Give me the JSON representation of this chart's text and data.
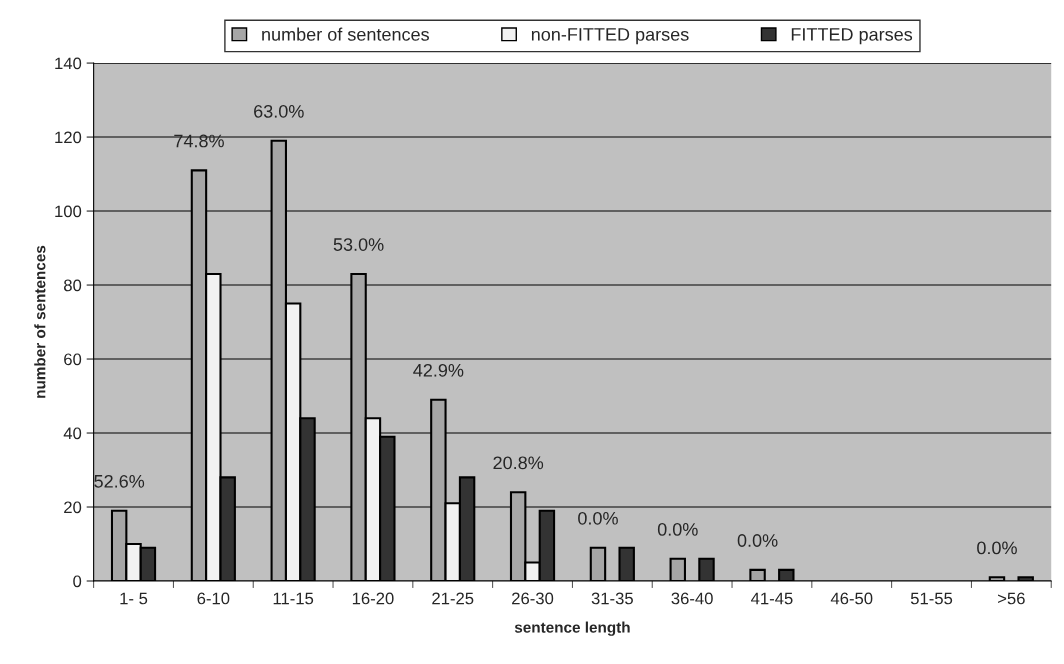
{
  "chart_data": {
    "type": "bar",
    "xlabel": "sentence length",
    "ylabel": "number of sentences",
    "categories": [
      "1- 5",
      "6-10",
      "11-15",
      "16-20",
      "21-25",
      "26-30",
      "31-35",
      "36-40",
      "41-45",
      "46-50",
      "51-55",
      ">56"
    ],
    "series": [
      {
        "name": "number of sentences",
        "color": "#a6a6a6",
        "values": [
          19,
          111,
          119,
          83,
          49,
          24,
          9,
          6,
          3,
          0,
          0,
          1
        ]
      },
      {
        "name": "non-FITTED parses",
        "color": "#f2f2f2",
        "values": [
          10,
          83,
          75,
          44,
          21,
          5,
          0,
          0,
          0,
          0,
          0,
          0
        ]
      },
      {
        "name": "FITTED parses",
        "color": "#333333",
        "values": [
          9,
          28,
          44,
          39,
          28,
          19,
          9,
          6,
          3,
          0,
          0,
          1
        ]
      }
    ],
    "annotations": [
      "52.6%",
      "74.8%",
      "63.0%",
      "53.0%",
      "42.9%",
      "20.8%",
      "0.0%",
      "0.0%",
      "0.0%",
      "0.0%"
    ],
    "ylim": [
      0,
      140
    ],
    "yticks": [
      0,
      20,
      40,
      60,
      80,
      100,
      120,
      140
    ],
    "grid": "y",
    "legend": "top"
  }
}
